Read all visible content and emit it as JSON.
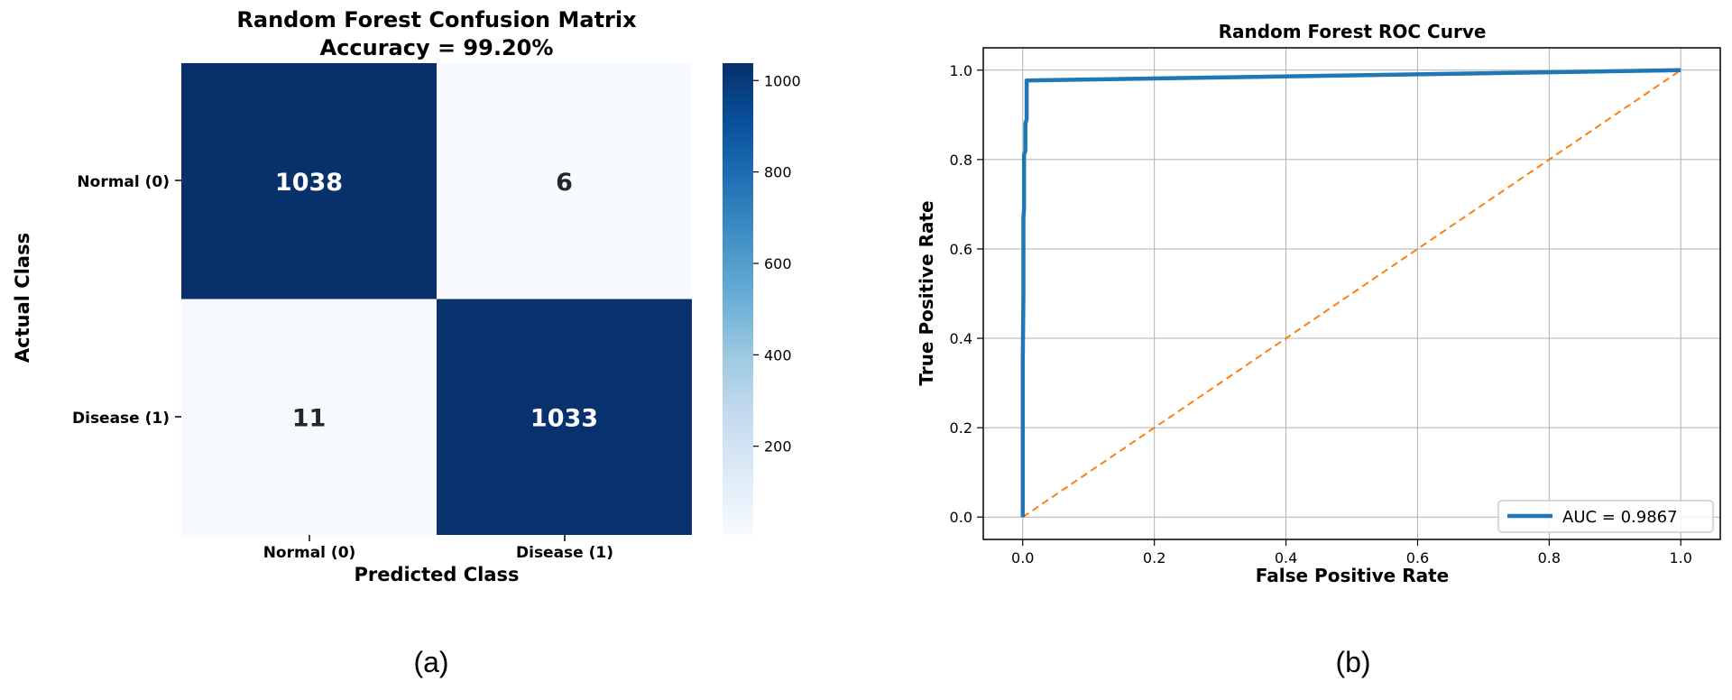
{
  "chart_data": [
    {
      "type": "heatmap",
      "title": "Random Forest Confusion Matrix",
      "subtitle": "Accuracy = 99.20%",
      "xlabel": "Predicted Class",
      "ylabel": "Actual Class",
      "x_categories": [
        "Normal (0)",
        "Disease (1)"
      ],
      "y_categories": [
        "Normal (0)",
        "Disease (1)"
      ],
      "values": [
        [
          1038,
          6
        ],
        [
          11,
          1033
        ]
      ],
      "colorbar": {
        "range": [
          6,
          1038
        ],
        "ticks": [
          200,
          400,
          600,
          800,
          1000
        ],
        "tick_labels": [
          "200",
          "400",
          "600",
          "800",
          "1000"
        ],
        "colormap": "Blues"
      },
      "panel_label": "(a)"
    },
    {
      "type": "line",
      "title": "Random Forest ROC Curve",
      "xlabel": "False Positive Rate",
      "ylabel": "True Positive Rate",
      "xlim": [
        -0.06,
        1.06
      ],
      "ylim": [
        -0.05,
        1.05
      ],
      "xticks": [
        0.0,
        0.2,
        0.4,
        0.6,
        0.8,
        1.0
      ],
      "xtick_labels": [
        "0.0",
        "0.2",
        "0.4",
        "0.6",
        "0.8",
        "1.0"
      ],
      "yticks": [
        0.0,
        0.2,
        0.4,
        0.6,
        0.8,
        1.0
      ],
      "ytick_labels": [
        "0.0",
        "0.2",
        "0.4",
        "0.6",
        "0.8",
        "1.0"
      ],
      "grid": true,
      "legend": "bottom-right",
      "series": [
        {
          "name": "AUC = 0.9867",
          "color": "#1f77b4",
          "x": [
            0.0,
            0.0,
            0.001,
            0.001,
            0.002,
            0.002,
            0.004,
            0.004,
            0.006,
            0.006,
            1.0
          ],
          "y": [
            0.0,
            0.35,
            0.5,
            0.67,
            0.69,
            0.81,
            0.82,
            0.88,
            0.89,
            0.977,
            1.0
          ]
        },
        {
          "name": "",
          "color": "#ff7f0e",
          "dashed": true,
          "x": [
            0.0,
            1.0
          ],
          "y": [
            0.0,
            1.0
          ]
        }
      ],
      "panel_label": "(b)"
    }
  ]
}
